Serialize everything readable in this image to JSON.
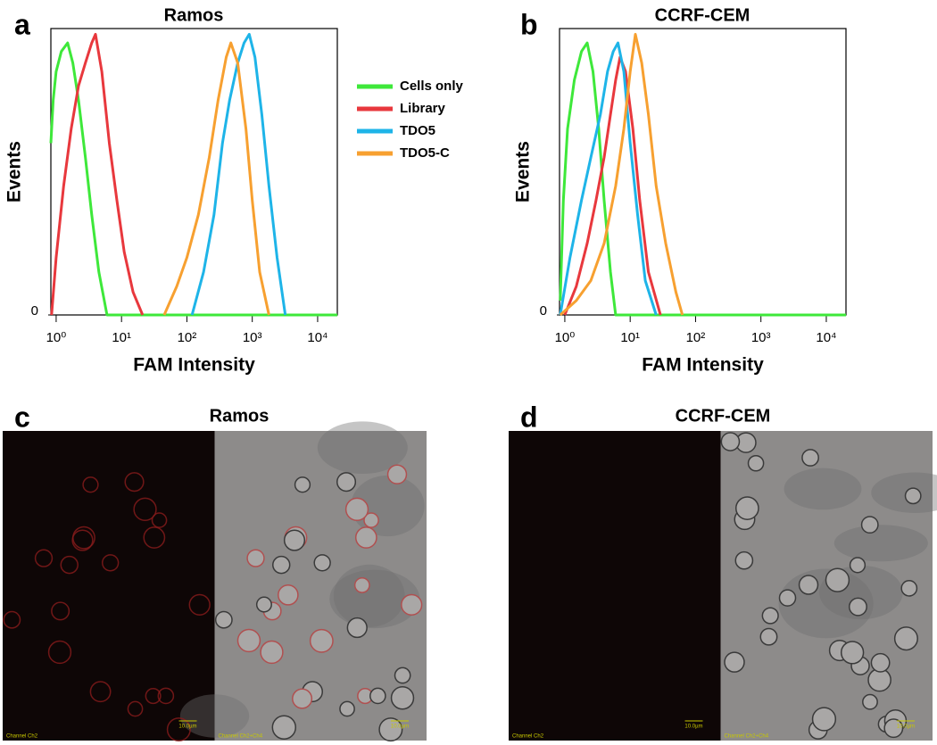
{
  "chart_data": [
    {
      "type": "line",
      "panel_label": "a",
      "title": "Ramos",
      "x_label": "FAM Intensity",
      "y_label": "Events",
      "xscale": "log",
      "xlim": [
        0.83,
        20000
      ],
      "ylim": [
        0,
        100
      ],
      "xticks": [
        {
          "value": 1,
          "label": "10⁰"
        },
        {
          "value": 10,
          "label": "10¹"
        },
        {
          "value": 100,
          "label": "10²"
        },
        {
          "value": 1000,
          "label": "10³"
        },
        {
          "value": 10000,
          "label": "10⁴"
        }
      ],
      "yticks": [
        0
      ],
      "legend": "outside-right",
      "series": [
        {
          "name": "Cells only",
          "color": "#3ee83a",
          "x": [
            0.83,
            0.9,
            1,
            1.2,
            1.5,
            1.8,
            2.2,
            2.8,
            3.5,
            4.5,
            6,
            20000
          ],
          "values": [
            60,
            75,
            85,
            92,
            95,
            88,
            75,
            55,
            35,
            15,
            0,
            0
          ]
        },
        {
          "name": "Library",
          "color": "#e8383d",
          "x": [
            0.85,
            1,
            1.3,
            1.7,
            2.2,
            2.8,
            3.5,
            4,
            5,
            6.5,
            8.5,
            11,
            15,
            21
          ],
          "values": [
            0,
            20,
            45,
            65,
            80,
            88,
            95,
            98,
            85,
            60,
            40,
            22,
            8,
            0
          ]
        },
        {
          "name": "TDO5",
          "color": "#1eb4e8",
          "x": [
            120,
            180,
            260,
            350,
            450,
            600,
            750,
            900,
            1100,
            1400,
            1800,
            2400,
            3200
          ],
          "values": [
            0,
            15,
            35,
            60,
            75,
            88,
            95,
            98,
            90,
            70,
            45,
            20,
            0
          ]
        },
        {
          "name": "TDO5-C",
          "color": "#f7a030",
          "x": [
            45,
            70,
            100,
            150,
            220,
            300,
            400,
            470,
            600,
            800,
            1000,
            1300,
            1800
          ],
          "values": [
            0,
            10,
            20,
            35,
            55,
            75,
            90,
            95,
            88,
            65,
            40,
            15,
            0
          ]
        }
      ]
    },
    {
      "type": "line",
      "panel_label": "b",
      "title": "CCRF-CEM",
      "x_label": "FAM Intensity",
      "y_label": "Events",
      "xscale": "log",
      "xlim": [
        0.83,
        20000
      ],
      "ylim": [
        0,
        100
      ],
      "xticks": [
        {
          "value": 1,
          "label": "10⁰"
        },
        {
          "value": 10,
          "label": "10¹"
        },
        {
          "value": 100,
          "label": "10²"
        },
        {
          "value": 1000,
          "label": "10³"
        },
        {
          "value": 10000,
          "label": "10⁴"
        }
      ],
      "yticks": [
        0
      ],
      "series": [
        {
          "color": "#3ee83a",
          "x": [
            0.85,
            0.95,
            1.1,
            1.4,
            1.8,
            2.2,
            2.7,
            3.3,
            4,
            5,
            6,
            20000
          ],
          "values": [
            5,
            40,
            65,
            82,
            92,
            95,
            85,
            65,
            40,
            15,
            0,
            0
          ]
        },
        {
          "color": "#e8383d",
          "x": [
            1,
            1.5,
            2.2,
            3,
            4,
            5,
            6,
            7,
            8.5,
            11,
            14,
            19,
            29
          ],
          "values": [
            0,
            10,
            25,
            40,
            55,
            70,
            82,
            90,
            85,
            65,
            40,
            15,
            0
          ]
        },
        {
          "color": "#1eb4e8",
          "x": [
            0.85,
            1.2,
            1.8,
            2.5,
            3.5,
            4.5,
            5.5,
            6.5,
            8,
            10,
            13,
            17,
            25
          ],
          "values": [
            0,
            20,
            40,
            55,
            70,
            85,
            92,
            95,
            85,
            60,
            35,
            12,
            0
          ]
        },
        {
          "color": "#f7a030",
          "x": [
            0.85,
            1.5,
            2.5,
            4,
            6,
            8,
            10,
            12,
            15,
            19,
            25,
            35,
            50,
            63
          ],
          "values": [
            0,
            5,
            12,
            25,
            45,
            65,
            85,
            98,
            88,
            70,
            45,
            25,
            8,
            0
          ]
        }
      ]
    }
  ],
  "micrographs": [
    {
      "panel_label": "c",
      "title": "Ramos",
      "left_caption": "Channel Ch2",
      "right_caption": "Channel Ch2+Ch4",
      "scale_label": "10.0µm"
    },
    {
      "panel_label": "d",
      "title": "CCRF-CEM",
      "left_caption": "Channel Ch2",
      "right_caption": "Channel Ch2+Ch4",
      "scale_label": "10.0µm"
    }
  ]
}
